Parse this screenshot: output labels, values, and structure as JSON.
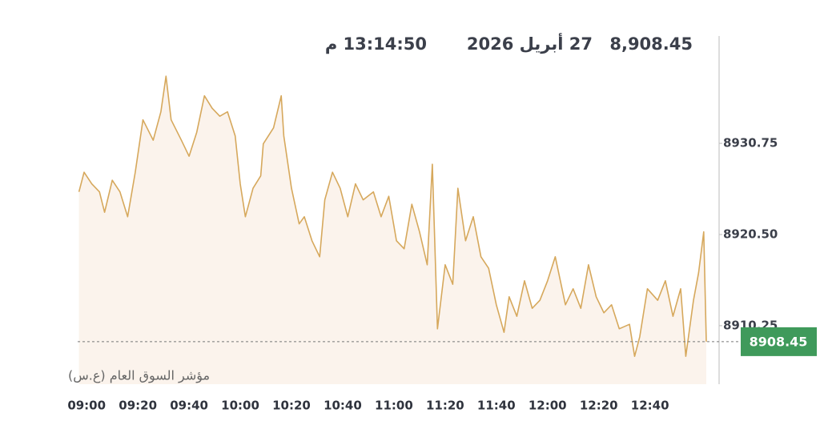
{
  "chart_data": {
    "type": "area",
    "header_value": "8,908.45",
    "date": "27 أبريل 2026",
    "time": "13:14:50 م",
    "index_name": "مؤشر السوق العام (ع.س)",
    "last_value": 8908.45,
    "color": "#d6a85c",
    "fill": "#fbf3ec",
    "badge_color": "#3f9a5b",
    "x": [
      -3,
      -1,
      2,
      5,
      7,
      10,
      13,
      16,
      19,
      22,
      26,
      29,
      31,
      33,
      37,
      40,
      43,
      46,
      49,
      52,
      55,
      58,
      60,
      62,
      65,
      68,
      69,
      73,
      76,
      77,
      80,
      83,
      85,
      88,
      91,
      93,
      96,
      99,
      102,
      105,
      108,
      112,
      115,
      118,
      121,
      124,
      127,
      130,
      133,
      135,
      137,
      140,
      143,
      145,
      148,
      151,
      154,
      157,
      160,
      163,
      165,
      168,
      171,
      174,
      177,
      180,
      183,
      187,
      190,
      193,
      196,
      199,
      202,
      205,
      208,
      212,
      214,
      216,
      219,
      223,
      226,
      229,
      232,
      234,
      237,
      239,
      241,
      242
    ],
    "values": [
      8925.3,
      8927.5,
      8926.2,
      8925.3,
      8923.0,
      8926.6,
      8925.3,
      8922.5,
      8927.5,
      8933.4,
      8931.1,
      8934.3,
      8938.3,
      8933.4,
      8931.1,
      8929.3,
      8932.0,
      8936.1,
      8934.7,
      8933.8,
      8934.3,
      8931.6,
      8926.2,
      8922.5,
      8925.7,
      8927.1,
      8930.7,
      8932.5,
      8936.1,
      8931.6,
      8925.7,
      8921.7,
      8922.5,
      8919.8,
      8918.0,
      8924.4,
      8927.5,
      8925.7,
      8922.5,
      8926.2,
      8924.4,
      8925.3,
      8922.5,
      8924.8,
      8919.8,
      8918.9,
      8923.9,
      8920.8,
      8917.1,
      8928.4,
      8909.9,
      8917.1,
      8914.9,
      8925.7,
      8919.8,
      8922.5,
      8918.0,
      8916.7,
      8912.6,
      8909.5,
      8913.5,
      8911.3,
      8915.3,
      8912.2,
      8913.1,
      8915.3,
      8918.0,
      8912.6,
      8914.4,
      8912.2,
      8917.1,
      8913.5,
      8911.7,
      8912.6,
      8909.9,
      8910.4,
      8906.8,
      8909.0,
      8914.4,
      8913.1,
      8915.3,
      8911.3,
      8914.4,
      8906.8,
      8913.1,
      8916.2,
      8920.8,
      8908.45
    ],
    "xlim": [
      -3.5,
      247
    ],
    "xticks": [
      {
        "value": 0,
        "label": "09:00"
      },
      {
        "value": 20,
        "label": "09:20"
      },
      {
        "value": 40,
        "label": "09:40"
      },
      {
        "value": 60,
        "label": "10:00"
      },
      {
        "value": 80,
        "label": "10:20"
      },
      {
        "value": 100,
        "label": "10:40"
      },
      {
        "value": 120,
        "label": "11:00"
      },
      {
        "value": 140,
        "label": "11:20"
      },
      {
        "value": 160,
        "label": "11:40"
      },
      {
        "value": 180,
        "label": "12:00"
      },
      {
        "value": 200,
        "label": "12:20"
      },
      {
        "value": 220,
        "label": "12:40"
      }
    ],
    "ylim": [
      8903.67,
      8942.82
    ],
    "yticks": [
      8930.75,
      {
        "value": 8920.5,
        "label": "8920.50"
      },
      8910.25
    ]
  }
}
